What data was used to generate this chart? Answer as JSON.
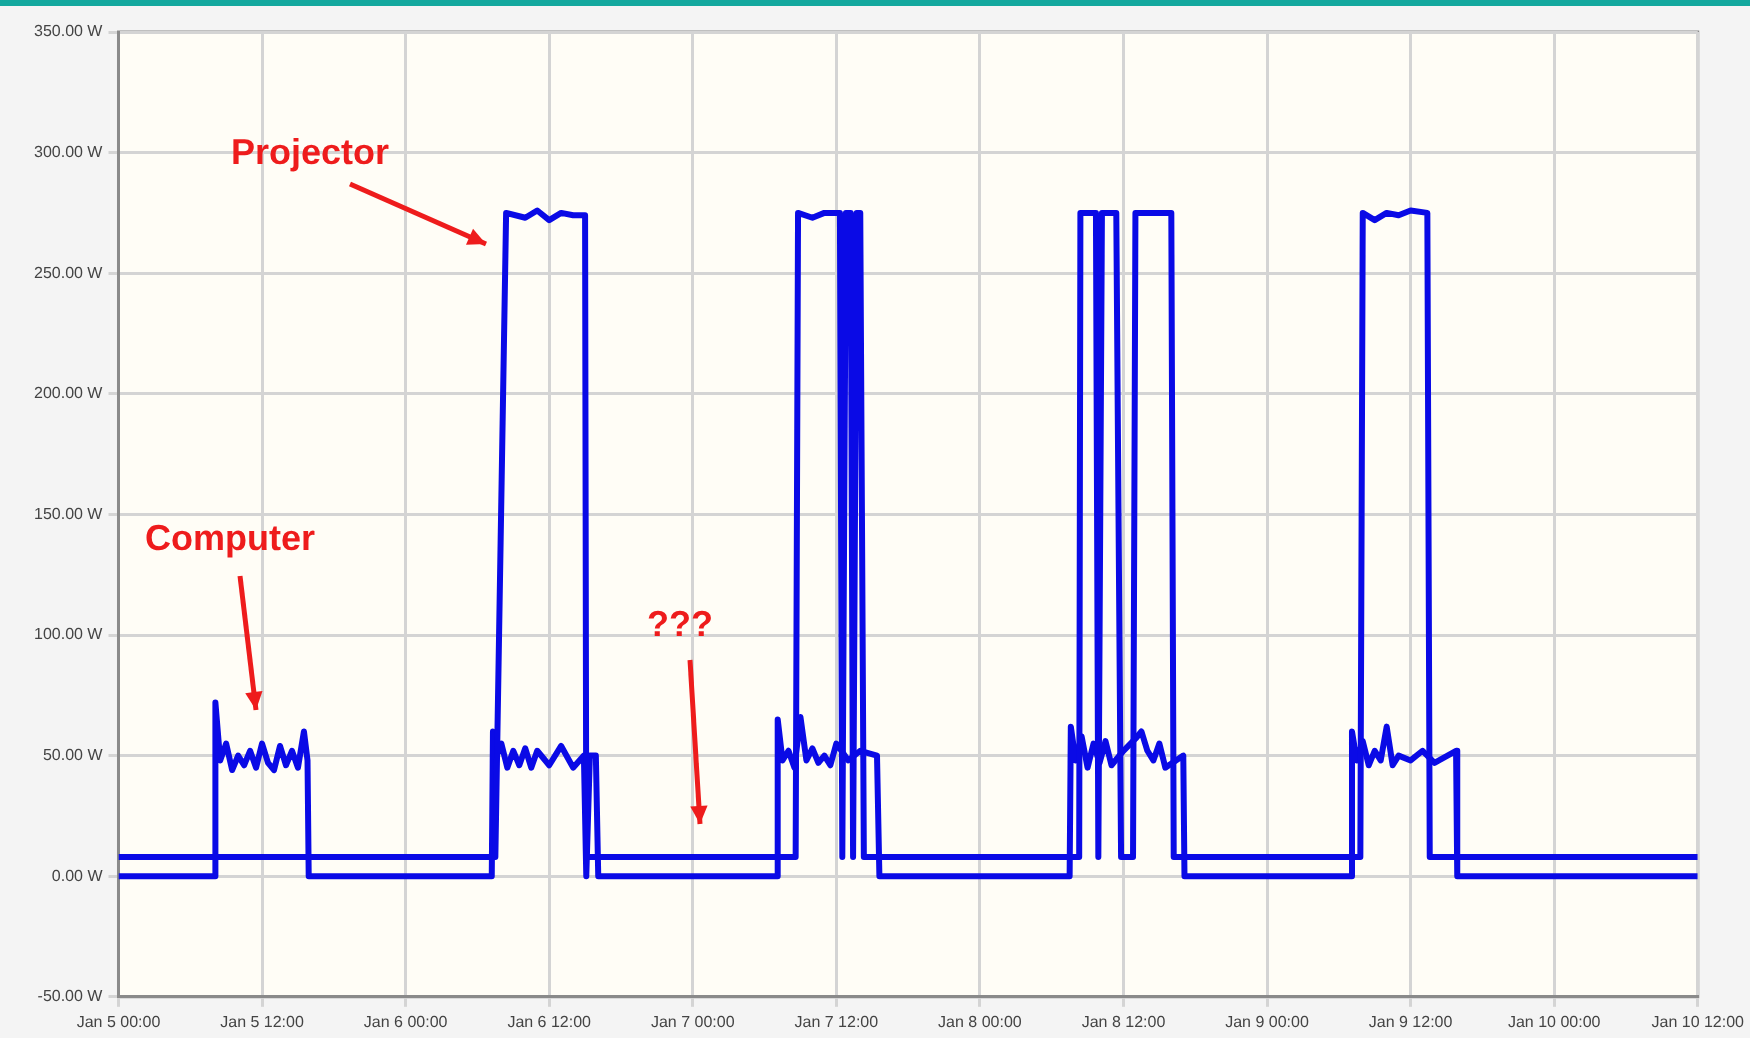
{
  "chart_data": {
    "type": "line",
    "xlim": [
      "--01-05T00:00",
      "--01-10T12:00"
    ],
    "xticks": [
      {
        "value": "--01-05T00:00",
        "label": "Jan 5 00:00"
      },
      {
        "value": "--01-05T12:00",
        "label": "Jan 5 12:00"
      },
      {
        "value": "--01-06T00:00",
        "label": "Jan 6 00:00"
      },
      {
        "value": "--01-06T12:00",
        "label": "Jan 6 12:00"
      },
      {
        "value": "--01-07T00:00",
        "label": "Jan 7 00:00"
      },
      {
        "value": "--01-07T12:00",
        "label": "Jan 7 12:00"
      },
      {
        "value": "--01-08T00:00",
        "label": "Jan 8 00:00"
      },
      {
        "value": "--01-08T12:00",
        "label": "Jan 8 12:00"
      },
      {
        "value": "--01-09T00:00",
        "label": "Jan 9 00:00"
      },
      {
        "value": "--01-09T12:00",
        "label": "Jan 9 12:00"
      },
      {
        "value": "--01-10T00:00",
        "label": "Jan 10 00:00"
      },
      {
        "value": "--01-10T12:00",
        "label": "Jan 10 12:00"
      }
    ],
    "ylim": [
      -50,
      350
    ],
    "yticks": [
      {
        "value": -50,
        "label": "-50.00 W"
      },
      {
        "value": 0,
        "label": "0.00 W"
      },
      {
        "value": 50,
        "label": "50.00 W"
      },
      {
        "value": 100,
        "label": "100.00 W"
      },
      {
        "value": 150,
        "label": "150.00 W"
      },
      {
        "value": 200,
        "label": "200.00 W"
      },
      {
        "value": 250,
        "label": "250.00 W"
      },
      {
        "value": 300,
        "label": "300.00 W"
      },
      {
        "value": 350,
        "label": "350.00 W"
      }
    ],
    "grid": true,
    "legend": false,
    "marker": "none",
    "line_style": "solid",
    "series": [
      {
        "color": "#0a0ae6",
        "x": [
          "--01-05T00:00",
          "--01-06T07:30",
          "--01-06T08:24",
          "--01-06T10:00",
          "--01-06T11:00",
          "--01-06T12:00",
          "--01-06T13:00",
          "--01-06T14:00",
          "--01-06T15:00",
          "--01-06T15:06",
          "--01-07T08:36",
          "--01-07T08:48",
          "--01-07T10:00",
          "--01-07T11:00",
          "--01-07T12:18",
          "--01-07T12:30",
          "--01-07T12:48",
          "--01-07T13:12",
          "--01-07T13:24",
          "--01-07T13:42",
          "--01-07T14:00",
          "--01-07T14:18",
          "--01-08T08:18",
          "--01-08T08:24",
          "--01-08T09:42",
          "--01-08T09:54",
          "--01-08T10:12",
          "--01-08T11:24",
          "--01-08T11:48",
          "--01-08T12:48",
          "--01-08T13:00",
          "--01-08T16:00",
          "--01-08T16:12",
          "--01-09T07:48",
          "--01-09T08:00",
          "--01-09T09:00",
          "--01-09T10:00",
          "--01-09T11:00",
          "--01-09T12:00",
          "--01-09T13:24",
          "--01-09T13:36",
          "--01-10T12:00"
        ],
        "values": [
          8,
          8,
          275,
          273,
          276,
          272,
          275,
          274,
          274,
          8,
          8,
          275,
          273,
          275,
          275,
          8,
          275,
          275,
          8,
          275,
          275,
          8,
          8,
          275,
          275,
          8,
          275,
          275,
          8,
          8,
          275,
          275,
          8,
          8,
          275,
          272,
          275,
          274,
          276,
          275,
          8,
          8
        ]
      },
      {
        "color": "#0a0ae6",
        "x": [
          "--01-05T00:00",
          "--01-05T08:00",
          "--01-05T08:06",
          "--01-05T08:30",
          "--01-05T09:00",
          "--01-05T09:30",
          "--01-05T10:00",
          "--01-05T10:30",
          "--01-05T11:00",
          "--01-05T11:30",
          "--01-05T12:00",
          "--01-05T12:30",
          "--01-05T13:00",
          "--01-05T13:30",
          "--01-05T14:00",
          "--01-05T14:30",
          "--01-05T15:00",
          "--01-05T15:30",
          "--01-05T15:48",
          "--01-05T15:54",
          "--01-06T07:12",
          "--01-06T07:18",
          "--01-06T07:36",
          "--01-06T08:00",
          "--01-06T08:30",
          "--01-06T09:00",
          "--01-06T09:30",
          "--01-06T10:00",
          "--01-06T10:30",
          "--01-06T11:00",
          "--01-06T12:00",
          "--01-06T13:00",
          "--01-06T14:00",
          "--01-06T14:54",
          "--01-06T15:06",
          "--01-06T15:24",
          "--01-06T15:54",
          "--01-06T16:06",
          "--01-07T07:00",
          "--01-07T07:06",
          "--01-07T07:30",
          "--01-07T08:00",
          "--01-07T08:30",
          "--01-07T09:00",
          "--01-07T09:30",
          "--01-07T10:00",
          "--01-07T10:30",
          "--01-07T11:00",
          "--01-07T11:30",
          "--01-07T12:00",
          "--01-07T13:00",
          "--01-07T14:00",
          "--01-07T15:24",
          "--01-07T15:36",
          "--01-08T07:30",
          "--01-08T07:36",
          "--01-08T08:00",
          "--01-08T08:30",
          "--01-08T09:00",
          "--01-08T09:30",
          "--01-08T10:00",
          "--01-08T10:30",
          "--01-08T11:00",
          "--01-08T12:00",
          "--01-08T13:00",
          "--01-08T13:30",
          "--01-08T14:00",
          "--01-08T14:30",
          "--01-08T15:00",
          "--01-08T15:30",
          "--01-08T17:00",
          "--01-08T17:06",
          "--01-09T07:00",
          "--01-09T07:06",
          "--01-09T07:30",
          "--01-09T08:00",
          "--01-09T08:30",
          "--01-09T09:00",
          "--01-09T09:30",
          "--01-09T10:00",
          "--01-09T10:30",
          "--01-09T11:00",
          "--01-09T12:00",
          "--01-09T13:00",
          "--01-09T14:00",
          "--01-09T15:48",
          "--01-09T15:54",
          "--01-10T12:00"
        ],
        "values": [
          0,
          0,
          72,
          48,
          55,
          44,
          50,
          46,
          52,
          45,
          55,
          47,
          44,
          54,
          46,
          52,
          45,
          60,
          48,
          0,
          0,
          60,
          50,
          55,
          45,
          52,
          46,
          53,
          45,
          52,
          46,
          54,
          45,
          50,
          0,
          50,
          50,
          0,
          0,
          65,
          48,
          52,
          45,
          66,
          48,
          53,
          47,
          50,
          46,
          55,
          48,
          52,
          50,
          0,
          0,
          62,
          48,
          58,
          45,
          55,
          47,
          56,
          46,
          52,
          57,
          60,
          52,
          48,
          55,
          45,
          50,
          0,
          0,
          60,
          48,
          56,
          46,
          52,
          48,
          62,
          46,
          50,
          48,
          52,
          47,
          52,
          0,
          0
        ]
      }
    ],
    "annotations": [
      "Projector",
      "Computer",
      "???"
    ]
  }
}
